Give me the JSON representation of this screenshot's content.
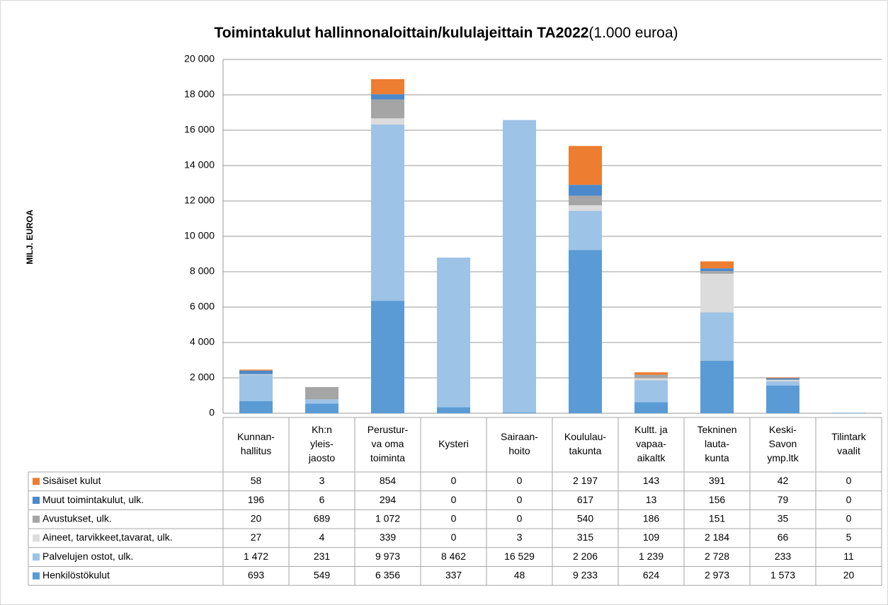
{
  "chart_data": {
    "type": "stacked_bar",
    "title": "Toimintakulut hallinnonaloittain/kululajeittain TA2022",
    "subtitle": "(1.000 euroa)",
    "y_label": "MILJ. EUROA",
    "ylim": [
      0,
      20000
    ],
    "yticks": [
      0,
      {
        "value": 2000,
        "label": "2 000"
      },
      {
        "value": 4000,
        "label": "4 000"
      },
      {
        "value": 6000,
        "label": "6 000"
      },
      {
        "value": 8000,
        "label": "8 000"
      },
      {
        "value": 10000,
        "label": "10 000"
      },
      {
        "value": 12000,
        "label": "12 000"
      },
      {
        "value": 14000,
        "label": "14 000"
      },
      {
        "value": 16000,
        "label": "16 000"
      },
      {
        "value": 18000,
        "label": "18 000"
      },
      {
        "value": 20000,
        "label": "20 000"
      }
    ],
    "grid": true,
    "categories": [
      [
        "Kunnan-",
        "hallitus"
      ],
      [
        "Kh:n",
        "yleis-",
        "jaosto"
      ],
      [
        "Perustur-",
        "va oma",
        "toiminta"
      ],
      [
        "Kysteri"
      ],
      [
        "Sairaan-",
        "hoito"
      ],
      [
        "Koululau-",
        "takunta"
      ],
      [
        "Kultt. ja",
        "vapaa-",
        "aikaltk"
      ],
      [
        "Tekninen",
        "lauta-",
        "kunta"
      ],
      [
        "Keski-",
        "Savon",
        "ymp.ltk"
      ],
      [
        "Tilintark",
        "vaalit"
      ]
    ],
    "series": [
      {
        "name": "Henkilöstökulut",
        "color": "#5b9bd5",
        "values": [
          693,
          549,
          6356,
          337,
          48,
          9233,
          624,
          2973,
          1573,
          20
        ],
        "value_labels": [
          "693",
          "549",
          "6 356",
          "337",
          "48",
          "9 233",
          "624",
          "2 973",
          "1 573",
          "20"
        ]
      },
      {
        "name": "Palvelujen ostot, ulk.",
        "color": "#9dc3e6",
        "values": [
          1472,
          231,
          9973,
          8462,
          16529,
          2206,
          1239,
          2728,
          233,
          11
        ],
        "value_labels": [
          "1 472",
          "231",
          "9 973",
          "8 462",
          "16 529",
          "2 206",
          "1 239",
          "2 728",
          "233",
          "11"
        ]
      },
      {
        "name": "Aineet, tarvikkeet,tavarat, ulk.",
        "color": "#dcdcdc",
        "values": [
          27,
          4,
          339,
          0,
          3,
          315,
          109,
          2184,
          66,
          5
        ],
        "value_labels": [
          "27",
          "4",
          "339",
          "0",
          "3",
          "315",
          "109",
          "2 184",
          "66",
          "5"
        ]
      },
      {
        "name": "Avustukset, ulk.",
        "color": "#a5a5a5",
        "values": [
          20,
          689,
          1072,
          0,
          0,
          540,
          186,
          151,
          35,
          0
        ],
        "value_labels": [
          "20",
          "689",
          "1 072",
          "0",
          "0",
          "540",
          "186",
          "151",
          "35",
          "0"
        ]
      },
      {
        "name": "Muut toimintakulut, ulk.",
        "color": "#4a89cc",
        "values": [
          196,
          6,
          294,
          0,
          0,
          617,
          13,
          156,
          79,
          0
        ],
        "value_labels": [
          "196",
          "6",
          "294",
          "0",
          "0",
          "617",
          "13",
          "156",
          "79",
          "0"
        ]
      },
      {
        "name": "Sisäiset kulut",
        "color": "#ed7d31",
        "values": [
          58,
          3,
          854,
          0,
          0,
          2197,
          143,
          391,
          42,
          0
        ],
        "value_labels": [
          "58",
          "3",
          "854",
          "0",
          "0",
          "2 197",
          "143",
          "391",
          "42",
          "0"
        ]
      }
    ]
  }
}
